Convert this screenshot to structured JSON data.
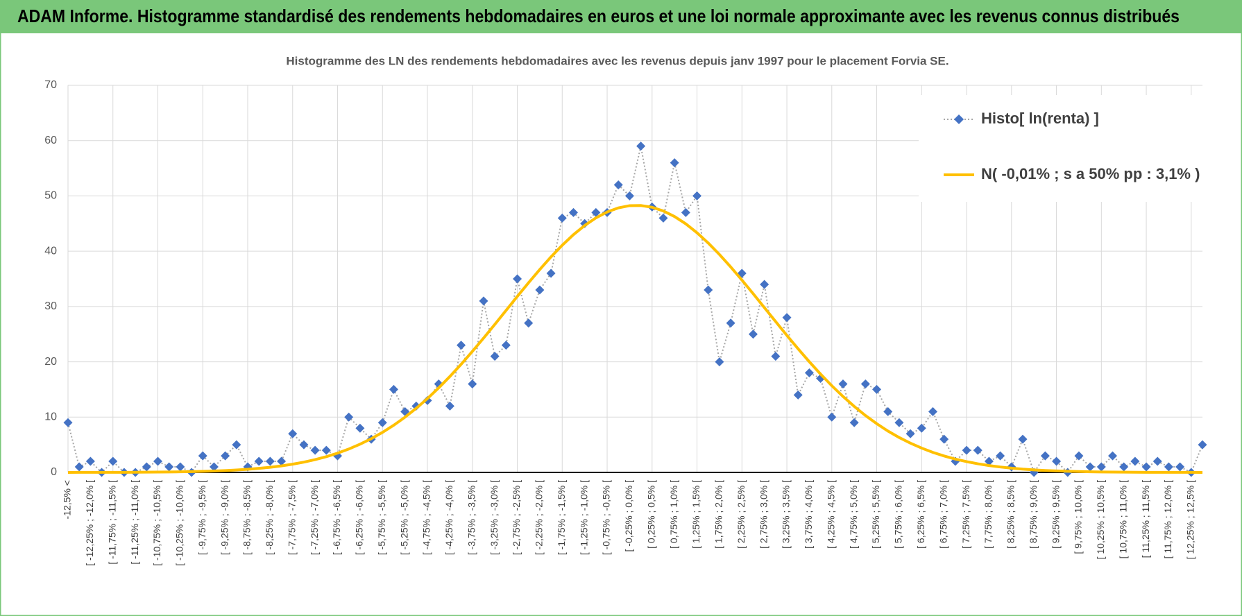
{
  "header": {
    "title": "ADAM Informe. Histogramme standardisé des rendements hebdomadaires en euros et une loi normale approximante avec les revenus connus distribués"
  },
  "chart_data": {
    "type": "line",
    "title": "Histogramme des LN des rendements hebdomadaires avec les revenus depuis janv 1997 pour le placement Forvia SE.",
    "categories": [
      "-12,5% <",
      null,
      "[ -12,25% ; -12,0% [",
      null,
      "[ -11,75% ; -11,5% [",
      null,
      "[ -11,25% ; -11,0% [",
      null,
      "[ -10,75% ; -10,5% [",
      null,
      "[ -10,25% ; -10,0% [",
      null,
      "[ -9,75% ; -9,5% [",
      null,
      "[ -9,25% ; -9,0% [",
      null,
      "[ -8,75% ; -8,5% [",
      null,
      "[ -8,25% ; -8,0% [",
      null,
      "[ -7,75% ; -7,5% [",
      null,
      "[ -7,25% ; -7,0% [",
      null,
      "[ -6,75% ; -6,5% [",
      null,
      "[ -6,25% ; -6,0% [",
      null,
      "[ -5,75% ; -5,5% [",
      null,
      "[ -5,25% ; -5,0% [",
      null,
      "[ -4,75% ; -4,5% [",
      null,
      "[ -4,25% ; -4,0% [",
      null,
      "[ -3,75% ; -3,5% [",
      null,
      "[ -3,25% ; -3,0% [",
      null,
      "[ -2,75% ; -2,5% [",
      null,
      "[ -2,25% ; -2,0% [",
      null,
      "[ -1,75% ; -1,5% [",
      null,
      "[ -1,25% ; -1,0% [",
      null,
      "[ -0,75% ; -0,5% [",
      null,
      "[ -0,25% ; 0,0% [",
      null,
      "[ 0,25% ; 0,5% [",
      null,
      "[ 0,75% ; 1,0% [",
      null,
      "[ 1,25% ; 1,5% [",
      null,
      "[ 1,75% ; 2,0% [",
      null,
      "[ 2,25% ; 2,5% [",
      null,
      "[ 2,75% ; 3,0% [",
      null,
      "[ 3,25% ; 3,5% [",
      null,
      "[ 3,75% ; 4,0% [",
      null,
      "[ 4,25% ; 4,5% [",
      null,
      "[ 4,75% ; 5,0% [",
      null,
      "[ 5,25% ; 5,5% [",
      null,
      "[ 5,75% ; 6,0% [",
      null,
      "[ 6,25% ; 6,5% [",
      null,
      "[ 6,75% ; 7,0% [",
      null,
      "[ 7,25% ; 7,5% [",
      null,
      "[ 7,75% ; 8,0% [",
      null,
      "[ 8,25% ; 8,5% [",
      null,
      "[ 8,75% ; 9,0% [",
      null,
      "[ 9,25% ; 9,5% [",
      null,
      "[ 9,75% ; 10,0% [",
      null,
      "[ 10,25% ; 10,5% [",
      null,
      "[ 10,75% ; 11,0% [",
      null,
      "[ 11,25% ; 11,5% [",
      null,
      "[ 11,75% ; 12,0% [",
      null,
      "[ 12,25% ; 12,5% [",
      null
    ],
    "series": [
      {
        "name": "Histo[ ln(renta) ]",
        "color": "#4472c4",
        "marker": "diamond",
        "line_color": "#a6a6a6",
        "line_style": "dotted",
        "values": [
          9,
          1,
          2,
          0,
          2,
          0,
          0,
          1,
          2,
          1,
          1,
          0,
          3,
          1,
          3,
          5,
          1,
          2,
          2,
          2,
          7,
          5,
          4,
          4,
          3,
          10,
          8,
          6,
          9,
          15,
          11,
          12,
          13,
          16,
          12,
          23,
          16,
          31,
          21,
          23,
          35,
          27,
          33,
          36,
          46,
          47,
          45,
          47,
          47,
          52,
          50,
          59,
          48,
          46,
          56,
          47,
          50,
          33,
          20,
          27,
          36,
          25,
          34,
          21,
          28,
          14,
          18,
          17,
          10,
          16,
          9,
          16,
          15,
          11,
          9,
          7,
          8,
          11,
          6,
          2,
          4,
          4,
          2,
          3,
          1,
          6,
          0,
          3,
          2,
          0,
          3,
          1,
          1,
          3,
          1,
          2,
          1,
          2,
          1,
          1,
          0,
          5
        ]
      },
      {
        "name": "N( -0,01% ; s a 50% pp : 3,1% )",
        "color": "#ffc000",
        "marker": null,
        "line_style": "solid",
        "values": [
          0.0,
          0.01,
          0.01,
          0.01,
          0.02,
          0.02,
          0.03,
          0.04,
          0.06,
          0.08,
          0.11,
          0.14,
          0.19,
          0.25,
          0.33,
          0.44,
          0.56,
          0.73,
          0.93,
          1.18,
          1.49,
          1.86,
          2.31,
          2.85,
          3.48,
          4.23,
          5.1,
          6.1,
          7.24,
          8.53,
          9.98,
          11.59,
          13.35,
          15.28,
          17.35,
          19.55,
          21.88,
          24.29,
          26.77,
          29.3,
          31.82,
          34.29,
          36.69,
          38.97,
          41.08,
          42.99,
          44.65,
          46.03,
          47.1,
          47.84,
          48.24,
          48.27,
          47.95,
          47.28,
          46.27,
          44.95,
          43.34,
          41.48,
          39.41,
          37.16,
          34.78,
          32.32,
          29.8,
          27.28,
          24.78,
          22.35,
          20.01,
          17.78,
          15.68,
          13.73,
          11.93,
          10.28,
          8.81,
          7.48,
          6.31,
          5.29,
          4.4,
          3.62,
          2.97,
          2.41,
          1.95,
          1.56,
          1.24,
          0.98,
          0.77,
          0.59,
          0.46,
          0.35,
          0.27,
          0.2,
          0.15,
          0.11,
          0.08,
          0.06,
          0.04,
          0.03,
          0.02,
          0.02,
          0.01,
          0.01,
          0.01,
          0.0
        ]
      }
    ],
    "ylim": [
      0,
      70
    ],
    "yticks": [
      0,
      10,
      20,
      30,
      40,
      50,
      60,
      70
    ],
    "grid": true,
    "legend": "upper right"
  }
}
